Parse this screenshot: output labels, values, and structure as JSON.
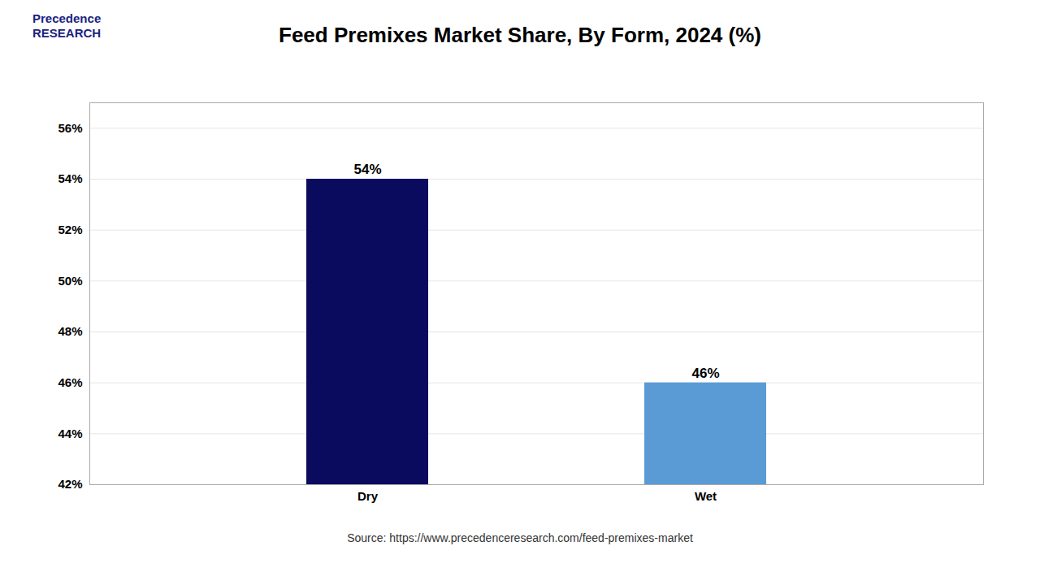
{
  "chart_data": {
    "type": "bar",
    "title": "Feed Premixes Market Share, By Form, 2024 (%)",
    "categories": [
      "Dry",
      "Wet"
    ],
    "values": [
      54,
      46
    ],
    "value_labels": [
      "54%",
      "46%"
    ],
    "colors": [
      "#0a0a5e",
      "#5b9bd5"
    ],
    "ylim": [
      42,
      57
    ],
    "yticks": [
      {
        "value": 42,
        "label": "42%"
      },
      {
        "value": 44,
        "label": "44%"
      },
      {
        "value": 46,
        "label": "46%"
      },
      {
        "value": 48,
        "label": "48%"
      },
      {
        "value": 50,
        "label": "50%"
      },
      {
        "value": 52,
        "label": "52%"
      },
      {
        "value": 54,
        "label": "54%"
      },
      {
        "value": 56,
        "label": "56%"
      }
    ],
    "grid": true,
    "data_labels": true,
    "caption": "Source: https://www.precedenceresearch.com/feed-premixes-market",
    "annotations": [
      "Precedence\nRESEARCH"
    ]
  }
}
